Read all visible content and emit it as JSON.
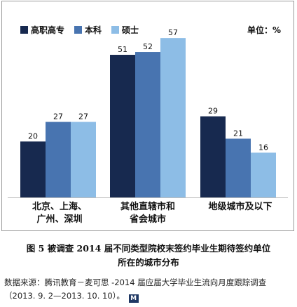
{
  "chart_data": {
    "type": "bar",
    "categories": [
      "北京、上海、\n广州、深圳",
      "其他直辖市和\n省会城市",
      "地级城市及以下"
    ],
    "series": [
      {
        "name": "高职高专",
        "values": [
          20,
          51,
          29
        ],
        "color": "#17294f"
      },
      {
        "name": "本科",
        "values": [
          27,
          52,
          21
        ],
        "color": "#4874b0"
      },
      {
        "name": "硕士",
        "values": [
          27,
          57,
          16
        ],
        "color": "#8dbde6"
      }
    ],
    "unit_label": "单位：%",
    "ylim": [
      0,
      60
    ],
    "grid": false,
    "legend_position": "top-left"
  },
  "caption": {
    "line1": "图 5  被调查 2014 届不同类型院校末签约毕业生期待签约单位",
    "line2": "所在的城市分布"
  },
  "source": {
    "text": "数据来源：腾讯教育－麦可思 -2014 届应届大学毕业生流向月度跟踪调查（2013. 9. 2—2013. 10. 10）。",
    "logo_text": "M"
  }
}
